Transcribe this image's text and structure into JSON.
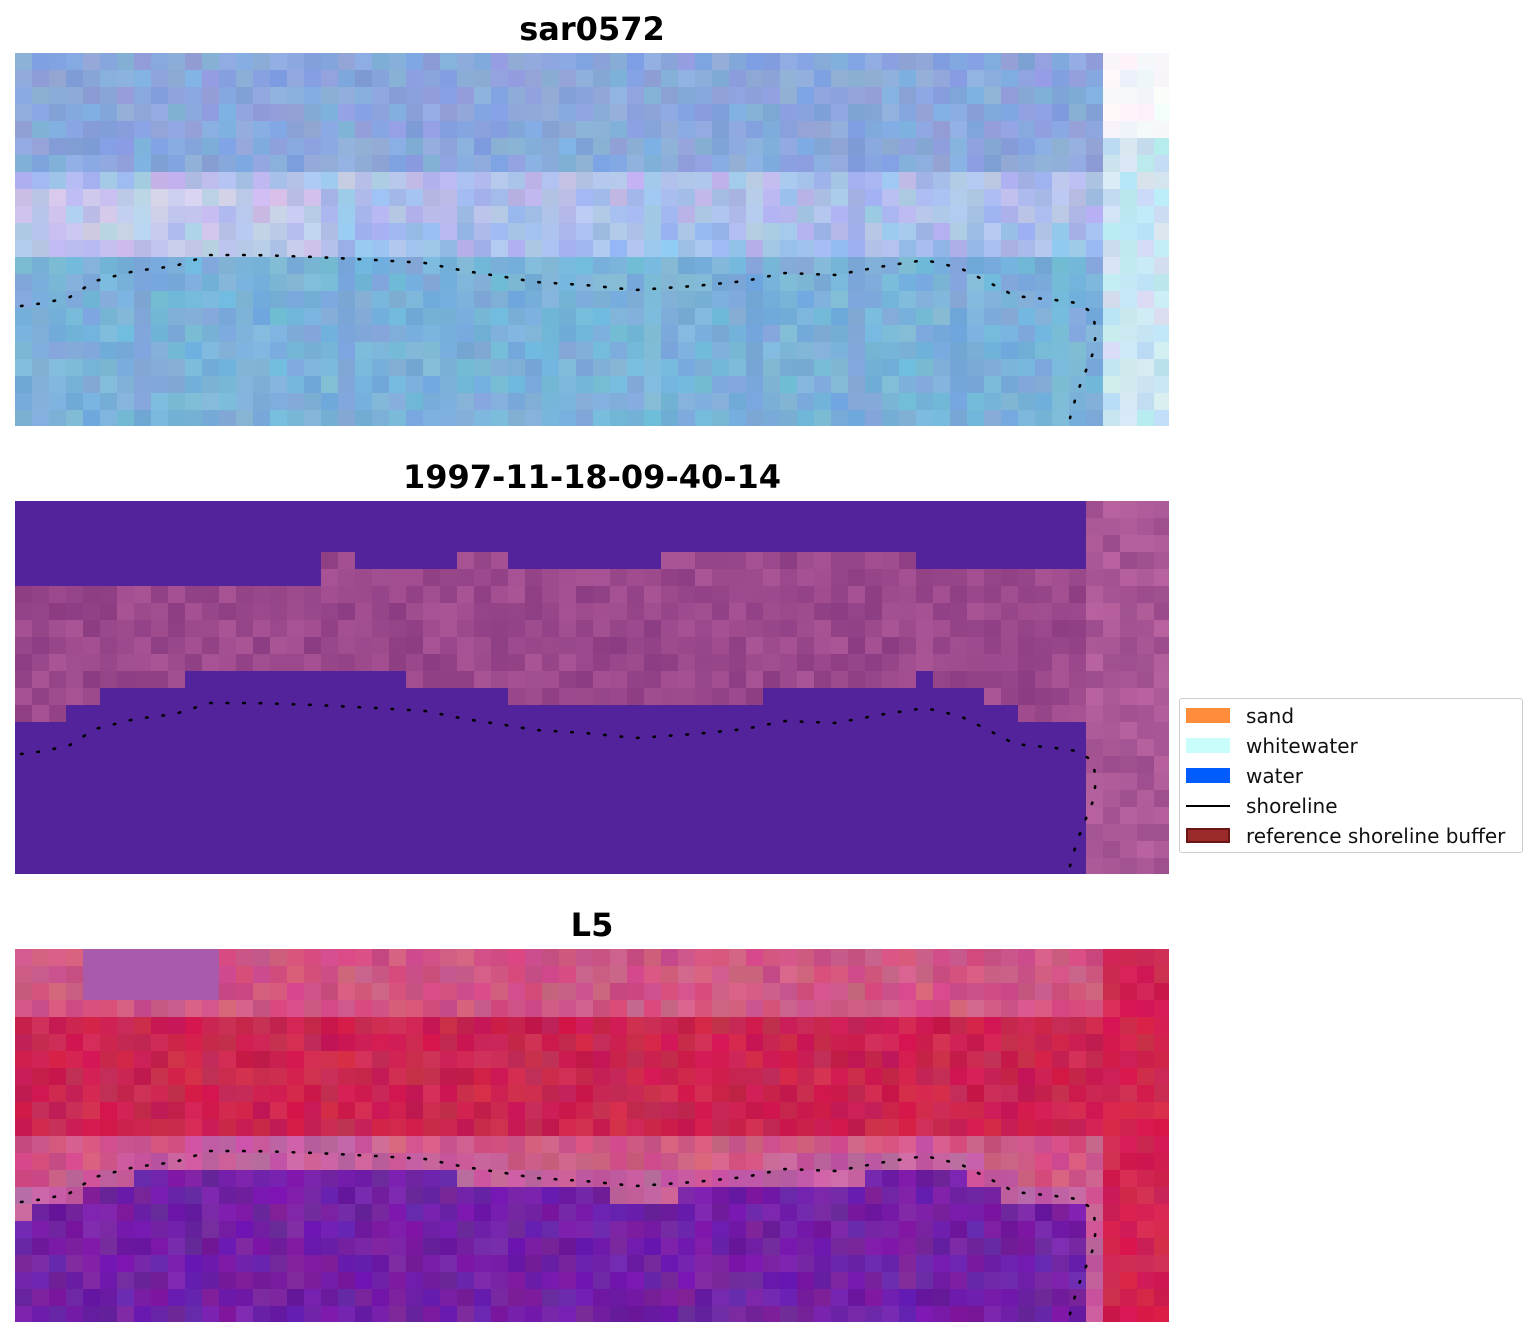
{
  "panels": [
    {
      "title": "sar0572",
      "image": "sar-composite-blue"
    },
    {
      "title": "1997-11-18-09-40-14",
      "image": "classified-purple"
    },
    {
      "title": "L5",
      "image": "ndwi-red-purple"
    }
  ],
  "legend": {
    "items": [
      {
        "label": "sand",
        "color": "#ff8c3b",
        "kind": "patch"
      },
      {
        "label": "whitewater",
        "color": "#c8fdfb",
        "kind": "patch"
      },
      {
        "label": "water",
        "color": "#005cff",
        "kind": "patch"
      },
      {
        "label": "shoreline",
        "color": "#000000",
        "kind": "line"
      },
      {
        "label": "reference shoreline buffer",
        "color": "#9b2b2b",
        "kind": "patch",
        "edge": "#6b1515"
      }
    ]
  },
  "colors": {
    "panel1_base": "#86a7d8",
    "panel2_water": "#52239a",
    "panel2_land": "#924389",
    "panel3_land": "#c22852",
    "panel3_water": "#6b1a9a"
  }
}
